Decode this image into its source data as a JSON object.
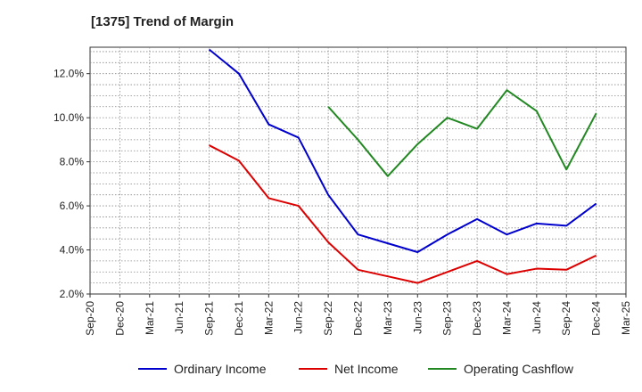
{
  "chart_data": {
    "type": "line",
    "title": "[1375]  Trend of Margin",
    "xlabel": "",
    "ylabel": "",
    "x": [
      "Sep-20",
      "Dec-20",
      "Mar-21",
      "Jun-21",
      "Sep-21",
      "Dec-21",
      "Mar-22",
      "Jun-22",
      "Sep-22",
      "Dec-22",
      "Mar-23",
      "Jun-23",
      "Sep-23",
      "Dec-23",
      "Mar-24",
      "Jun-24",
      "Sep-24",
      "Dec-24",
      "Mar-25"
    ],
    "ylim": [
      2.0,
      13.2
    ],
    "yticks": [
      2.0,
      4.0,
      6.0,
      8.0,
      10.0,
      12.0
    ],
    "ytick_labels": [
      "2.0%",
      "4.0%",
      "6.0%",
      "8.0%",
      "10.0%",
      "12.0%"
    ],
    "grid": true,
    "legend_position": "bottom",
    "series": [
      {
        "name": "Ordinary Income",
        "color": "#0000cc",
        "values": [
          null,
          null,
          null,
          null,
          13.1,
          12.0,
          9.7,
          9.1,
          6.5,
          4.7,
          4.3,
          3.9,
          4.7,
          5.4,
          4.7,
          5.2,
          5.1,
          6.1,
          null
        ]
      },
      {
        "name": "Net Income",
        "color": "#dd0000",
        "values": [
          null,
          null,
          null,
          null,
          8.75,
          8.05,
          6.35,
          6.0,
          4.35,
          3.1,
          2.8,
          2.5,
          3.0,
          3.5,
          2.9,
          3.15,
          3.1,
          3.75,
          null
        ]
      },
      {
        "name": "Operating Cashflow",
        "color": "#228822",
        "values": [
          null,
          null,
          null,
          null,
          null,
          null,
          null,
          null,
          10.5,
          9.0,
          7.35,
          8.8,
          10.0,
          9.5,
          11.25,
          10.3,
          7.65,
          10.2,
          null
        ]
      }
    ]
  }
}
